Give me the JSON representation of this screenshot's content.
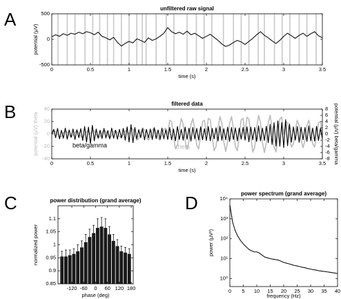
{
  "chart_data": [
    {
      "type": "line",
      "panel_label": "A",
      "title": "unfiltered raw signal",
      "x_label": "time (s)",
      "y_label": "potential (μV)",
      "xlim": [
        0,
        3.5
      ],
      "xticks": [
        0,
        0.5,
        1,
        1.5,
        2,
        2.5,
        3,
        3.5
      ],
      "ylim": [
        -500,
        500
      ],
      "yticks": [
        -500,
        0,
        500
      ],
      "vlines": [
        0.08,
        0.2,
        0.3,
        0.43,
        0.53,
        0.62,
        0.72,
        0.8,
        0.9,
        1.0,
        1.1,
        1.17,
        1.22,
        1.35,
        1.48,
        1.58,
        1.75,
        1.87,
        1.97,
        2.07,
        2.22,
        2.35,
        2.45,
        2.55,
        2.67,
        2.75,
        2.88,
        2.98,
        3.08,
        3.2,
        3.3,
        3.42
      ],
      "vline_color": "#c8c8c8",
      "x": [
        0,
        0.05,
        0.1,
        0.15,
        0.2,
        0.25,
        0.3,
        0.35,
        0.4,
        0.45,
        0.5,
        0.55,
        0.6,
        0.65,
        0.7,
        0.75,
        0.8,
        0.85,
        0.9,
        0.95,
        1,
        1.05,
        1.1,
        1.15,
        1.2,
        1.25,
        1.3,
        1.35,
        1.4,
        1.45,
        1.5,
        1.55,
        1.6,
        1.65,
        1.7,
        1.75,
        1.8,
        1.85,
        1.9,
        1.95,
        2,
        2.05,
        2.1,
        2.15,
        2.2,
        2.25,
        2.3,
        2.35,
        2.4,
        2.45,
        2.5,
        2.55,
        2.6,
        2.65,
        2.7,
        2.75,
        2.8,
        2.85,
        2.9,
        2.95,
        3,
        3.05,
        3.1,
        3.15,
        3.2,
        3.25,
        3.3,
        3.35,
        3.4,
        3.45,
        3.5
      ],
      "series": [
        {
          "color": "#111111",
          "values": [
            50,
            90,
            60,
            110,
            80,
            120,
            100,
            140,
            110,
            150,
            130,
            90,
            140,
            60,
            30,
            -10,
            40,
            -60,
            -130,
            -80,
            -40,
            -70,
            10,
            -20,
            -60,
            30,
            -20,
            10,
            60,
            120,
            230,
            150,
            110,
            140,
            100,
            160,
            90,
            120,
            70,
            20,
            60,
            100,
            40,
            -20,
            -90,
            -140,
            -110,
            -60,
            -20,
            -50,
            -100,
            -40,
            20,
            90,
            150,
            80,
            30,
            -30,
            -80,
            -20,
            60,
            120,
            70,
            20,
            80,
            120,
            60,
            110,
            150,
            70,
            30
          ]
        }
      ]
    },
    {
      "type": "line",
      "panel_label": "B",
      "title": "filtered data",
      "x_label": "time (s)",
      "y_label": "potential (μV) theta",
      "y2_label": "potential (μV) beta/gamma",
      "xlim": [
        0,
        3.5
      ],
      "xticks": [
        0,
        0.5,
        1,
        1.5,
        2,
        2.5,
        3,
        3.5
      ],
      "ylim": [
        -40,
        40
      ],
      "yticks": [
        -40,
        -20,
        0,
        20,
        40
      ],
      "y2lim": [
        -8,
        8
      ],
      "y2ticks": [
        -8,
        -6,
        -4,
        -2,
        0,
        2,
        4,
        6,
        8
      ],
      "x": [
        0,
        0.025,
        0.05,
        0.075,
        0.1,
        0.125,
        0.15,
        0.175,
        0.2,
        0.225,
        0.25,
        0.275,
        0.3,
        0.325,
        0.35,
        0.375,
        0.4,
        0.425,
        0.45,
        0.475,
        0.5,
        0.525,
        0.55,
        0.575,
        0.6,
        0.625,
        0.65,
        0.675,
        0.7,
        0.725,
        0.75,
        0.775,
        0.8,
        0.825,
        0.85,
        0.875,
        0.9,
        0.925,
        0.95,
        0.975,
        1,
        1.025,
        1.05,
        1.075,
        1.1,
        1.125,
        1.15,
        1.175,
        1.2,
        1.225,
        1.25,
        1.275,
        1.3,
        1.325,
        1.35,
        1.375,
        1.4,
        1.425,
        1.45,
        1.475,
        1.5,
        1.525,
        1.55,
        1.575,
        1.6,
        1.625,
        1.65,
        1.675,
        1.7,
        1.725,
        1.75,
        1.775,
        1.8,
        1.825,
        1.85,
        1.875,
        1.9,
        1.925,
        1.95,
        1.975,
        2,
        2.025,
        2.05,
        2.075,
        2.1,
        2.125,
        2.15,
        2.175,
        2.2,
        2.225,
        2.25,
        2.275,
        2.3,
        2.325,
        2.35,
        2.375,
        2.4,
        2.425,
        2.45,
        2.475,
        2.5,
        2.525,
        2.55,
        2.575,
        2.6,
        2.625,
        2.65,
        2.675,
        2.7,
        2.725,
        2.75,
        2.775,
        2.8,
        2.825,
        2.85,
        2.875,
        2.9,
        2.925,
        2.95,
        2.975,
        3,
        3.025,
        3.05,
        3.075,
        3.1,
        3.125,
        3.15,
        3.175,
        3.2,
        3.225,
        3.25,
        3.275,
        3.3,
        3.325,
        3.35,
        3.375,
        3.4,
        3.425,
        3.45,
        3.475,
        3.5
      ],
      "series": [
        {
          "name": "theta",
          "color": "#bbbbbb",
          "axis": "y",
          "values": [
            0,
            4,
            4,
            -1,
            -5,
            -4,
            2,
            5,
            3,
            -2,
            -5,
            -2,
            3,
            5,
            2,
            -4,
            -5,
            -1,
            4,
            4,
            0,
            5,
            5,
            -1,
            -6,
            -4,
            2,
            6,
            4,
            -3,
            -6,
            -3,
            4,
            6,
            2,
            -4,
            -6,
            -1,
            5,
            5,
            0,
            9,
            8,
            -2,
            -10,
            -7,
            3,
            10,
            6,
            -5,
            -10,
            -5,
            6,
            10,
            3,
            -7,
            -10,
            -2,
            8,
            9,
            0,
            22,
            20,
            -4,
            -24,
            -18,
            8,
            25,
            15,
            -11,
            -25,
            -11,
            15,
            25,
            8,
            -18,
            -24,
            -4,
            20,
            22,
            0,
            25,
            23,
            -4,
            -27,
            -20,
            9,
            28,
            17,
            -13,
            -28,
            -13,
            17,
            28,
            9,
            -20,
            -27,
            -4,
            23,
            25,
            0,
            27,
            24,
            -5,
            -29,
            -21,
            9,
            30,
            18,
            -14,
            -30,
            -14,
            18,
            30,
            9,
            -21,
            -29,
            -5,
            24,
            27,
            0,
            20,
            18,
            -4,
            -21,
            -16,
            7,
            22,
            13,
            -10,
            -22,
            -10,
            13,
            22,
            7,
            -16,
            -21,
            -4,
            18,
            20,
            0
          ]
        },
        {
          "name": "beta/gamma",
          "color": "#000000",
          "axis": "y2",
          "values": [
            0,
            1.5,
            -1.2,
            1.8,
            -1.6,
            1.2,
            -1.4,
            1.9,
            -1.7,
            1.3,
            -1.1,
            1.6,
            -1.8,
            1.4,
            -1.2,
            1.7,
            -2.1,
            2.4,
            -2.6,
            2.2,
            -3.1,
            2.8,
            -2.2,
            1.6,
            -1.4,
            1.2,
            -1.5,
            1.8,
            -1.3,
            1.1,
            -1.6,
            1.9,
            -1.4,
            1.2,
            -1.7,
            1.5,
            -1.3,
            1.8,
            -2.0,
            2.3,
            -2.6,
            3.0,
            -2.8,
            2.1,
            -1.6,
            1.4,
            -1.2,
            1.7,
            -1.9,
            1.5,
            -1.3,
            1.6,
            -1.8,
            2.0,
            -1.5,
            1.3,
            -1.7,
            1.9,
            -1.6,
            1.4,
            -1.8,
            2.1,
            -1.9,
            1.6,
            -2.2,
            2.4,
            -1.8,
            1.5,
            -2.0,
            2.2,
            -1.7,
            1.9,
            -2.3,
            2.1,
            -1.6,
            1.8,
            -2.0,
            2.3,
            -1.9,
            1.7,
            -2.1,
            2.4,
            -2.2,
            1.8,
            -1.6,
            2.0,
            -2.3,
            2.5,
            -2.0,
            1.7,
            -1.9,
            2.2,
            -2.4,
            2.1,
            -1.8,
            2.0,
            -2.2,
            1.9,
            -1.7,
            2.1,
            -2.0,
            2.3,
            -2.5,
            2.2,
            -1.9,
            2.1,
            -2.4,
            2.6,
            -2.2,
            1.9,
            -2.1,
            2.5,
            -2.8,
            3.1,
            -3.4,
            3.6,
            -3.9,
            4.2,
            -4.0,
            3.7,
            -4.4,
            4.6,
            -3.8,
            3.2,
            -2.6,
            2.3,
            -2.0,
            2.4,
            -2.7,
            2.2,
            -1.9,
            2.1,
            -2.4,
            2.6,
            -2.2,
            1.9,
            -2.3,
            2.5,
            -2.1,
            1.8,
            -1.5
          ]
        }
      ]
    },
    {
      "type": "bar",
      "panel_label": "C",
      "title": "power distribution (grand average)",
      "x_label": "phase (deg)",
      "y_label": "normalized power",
      "xlim": [
        -190,
        190
      ],
      "xticks": [
        -120,
        -60,
        0,
        60,
        120,
        180
      ],
      "ylim": [
        0.85,
        1.15
      ],
      "yticks": [
        0.85,
        0.9,
        0.95,
        1,
        1.05,
        1.1
      ],
      "color": "#1a1a1a",
      "x": [
        -170,
        -150,
        -130,
        -110,
        -90,
        -70,
        -50,
        -30,
        -10,
        10,
        30,
        50,
        70,
        90,
        110,
        130,
        150,
        170
      ],
      "values": [
        0.955,
        0.955,
        0.96,
        0.965,
        0.975,
        0.99,
        1.01,
        1.03,
        1.045,
        1.065,
        1.07,
        1.065,
        1.04,
        1.015,
        0.995,
        0.975,
        0.97,
        0.965
      ],
      "errors": [
        0.02,
        0.025,
        0.02,
        0.02,
        0.025,
        0.025,
        0.03,
        0.03,
        0.03,
        0.035,
        0.035,
        0.035,
        0.03,
        0.025,
        0.025,
        0.02,
        0.02,
        0.02
      ]
    },
    {
      "type": "line",
      "panel_label": "D",
      "title": "power spectrum (grand average)",
      "x_label": "frequency (Hz)",
      "y_label": "power (μV²)",
      "log_y": true,
      "xlim": [
        0,
        40
      ],
      "xticks": [
        0,
        5,
        10,
        15,
        20,
        25,
        30,
        35,
        40
      ],
      "ylim": [
        0.4,
        10000
      ],
      "yticks": [
        {
          "value": 1,
          "label": "10⁰"
        },
        {
          "value": 10,
          "label": "10¹"
        },
        {
          "value": 100,
          "label": "10²"
        },
        {
          "value": 1000,
          "label": "10³"
        },
        {
          "value": 10000,
          "label": "10⁴"
        }
      ],
      "x": [
        0,
        1,
        2,
        3,
        4,
        5,
        6,
        7,
        8,
        9,
        10,
        11,
        12,
        13,
        14,
        15,
        16,
        17,
        18,
        19,
        20,
        21,
        22,
        23,
        24,
        25,
        26,
        27,
        28,
        29,
        30,
        31,
        32,
        33,
        34,
        35,
        36,
        37,
        38,
        39,
        40
      ],
      "series": [
        {
          "color": "#111111",
          "values": [
            5000,
            700,
            250,
            130,
            80,
            55,
            40,
            30,
            25,
            22,
            22,
            19,
            15,
            12,
            11,
            10,
            9.5,
            9,
            8.5,
            7.5,
            6.5,
            6,
            5.5,
            5,
            4.6,
            4.3,
            4,
            3.7,
            3.5,
            3.2,
            3,
            2.8,
            2.7,
            2.5,
            2.4,
            2.3,
            2.2,
            2.1,
            2,
            1.9,
            1.8
          ]
        }
      ]
    }
  ]
}
